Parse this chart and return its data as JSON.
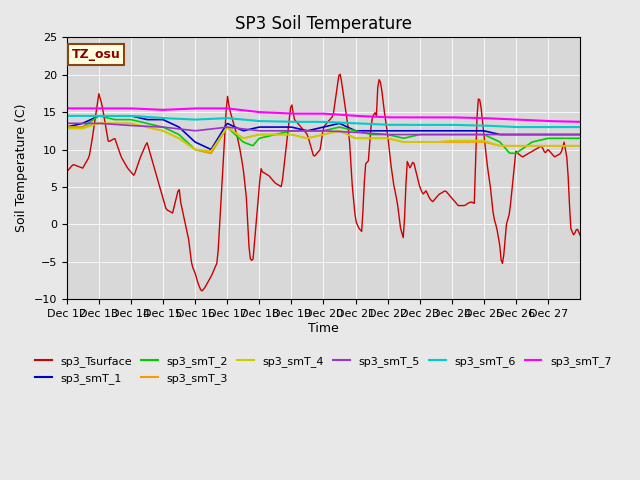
{
  "title": "SP3 Soil Temperature",
  "ylabel": "Soil Temperature (C)",
  "xlabel": "Time",
  "ylim": [
    -10,
    25
  ],
  "yticks": [
    -10,
    -5,
    0,
    5,
    10,
    15,
    20,
    25
  ],
  "tz_label": "TZ_osu",
  "background_color": "#e8e8e8",
  "plot_bg_color": "#d8d8d8",
  "series_colors": {
    "sp3_Tsurface": "#cc0000",
    "sp3_smT_1": "#0000cc",
    "sp3_smT_2": "#00cc00",
    "sp3_smT_3": "#ff9900",
    "sp3_smT_4": "#cccc00",
    "sp3_smT_5": "#9933cc",
    "sp3_smT_6": "#00cccc",
    "sp3_smT_7": "#ff00ff"
  },
  "legend_entries": [
    "sp3_Tsurface",
    "sp3_smT_1",
    "sp3_smT_2",
    "sp3_smT_3",
    "sp3_smT_4",
    "sp3_smT_5",
    "sp3_smT_6",
    "sp3_smT_7"
  ],
  "xtick_positions": [
    0,
    1,
    2,
    3,
    4,
    5,
    6,
    7,
    8,
    9,
    10,
    11,
    12,
    13,
    14,
    15
  ],
  "xtick_labels": [
    "Dec 12",
    "Dec 13",
    "Dec 14",
    "Dec 15",
    "Dec 16",
    "Dec 17",
    "Dec 18",
    "Dec 19",
    "Dec 20",
    "Dec 21",
    "Dec 22",
    "Dec 23",
    "Dec 24",
    "Dec 25",
    "Dec 26",
    "Dec 27"
  ],
  "n_points": 384
}
